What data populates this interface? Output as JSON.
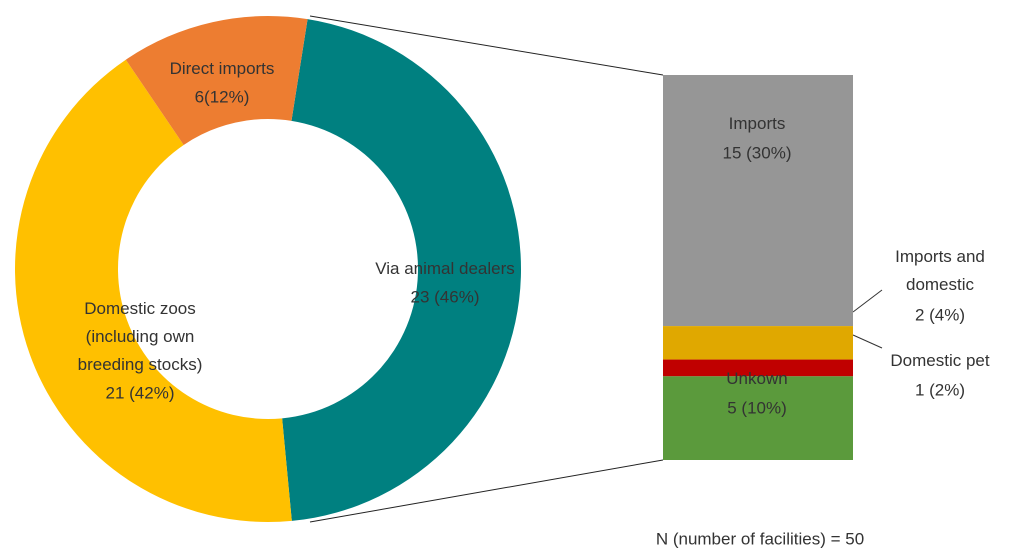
{
  "chart_data": [
    {
      "type": "donut",
      "categories": [
        "Via animal dealers",
        "Domestic zoos (including own breeding stocks)",
        "Direct imports"
      ],
      "values": [
        23,
        21,
        6
      ],
      "value_labels": [
        "23 (46%)",
        "21 (42%)",
        "6(12%)"
      ],
      "colors": [
        "#008080",
        "#ffc000",
        "#ed7d31"
      ]
    },
    {
      "type": "stacked-bar",
      "categories": [
        "Imports",
        "Imports and domestic",
        "Domestic pet",
        "Unkown"
      ],
      "values": [
        15,
        2,
        1,
        5
      ],
      "value_labels": [
        "15 (30%)",
        "2 (4%)",
        "1 (2%)",
        "5 (10%)"
      ],
      "colors": [
        "#969696",
        "#e0a800",
        "#c00000",
        "#5b9a3c"
      ],
      "note": "N (number of facilities) = 50"
    }
  ]
}
